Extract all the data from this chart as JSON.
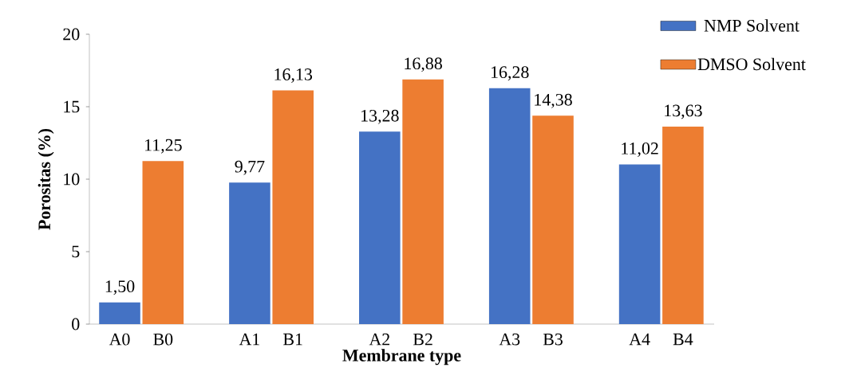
{
  "chart_data": {
    "type": "bar",
    "xlabel": "Membrane type",
    "ylabel": "Porositas (%)",
    "categories": [
      "A0",
      "B0",
      "A1",
      "B1",
      "A2",
      "B2",
      "A3",
      "B3",
      "A4",
      "B4"
    ],
    "series": [
      {
        "name": "NMP Solvent",
        "color": "#4472c4",
        "values": [
          1.5,
          null,
          9.77,
          null,
          13.28,
          null,
          16.28,
          null,
          11.02,
          null
        ],
        "value_labels": [
          "1,50",
          null,
          "9,77",
          null,
          "13,28",
          null,
          "16,28",
          null,
          "11,02",
          null
        ]
      },
      {
        "name": "DMSO Solvent",
        "color": "#ed7d31",
        "values": [
          null,
          11.25,
          null,
          16.13,
          null,
          16.88,
          null,
          14.38,
          null,
          13.63
        ],
        "value_labels": [
          null,
          "11,25",
          null,
          "16,13",
          null,
          "16,88",
          null,
          "14,38",
          null,
          "13,63"
        ]
      }
    ],
    "ylim": [
      0,
      20
    ],
    "yticks": [
      0,
      5,
      10,
      15,
      20
    ],
    "grid": false,
    "legend": "top right"
  }
}
